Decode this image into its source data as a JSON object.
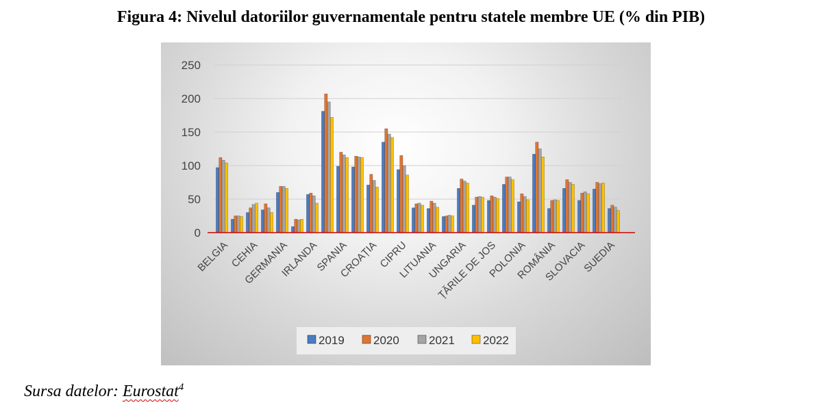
{
  "figure": {
    "title": "Figura 4: Nivelul datoriilor guvernamentale pentru statele membre UE (% din PIB)",
    "source_prefix": "Sursa datelor: ",
    "source_link": "Eurostat",
    "source_footnote": "4"
  },
  "chart_data": {
    "type": "bar",
    "categories": [
      "BELGIA",
      "CEHIA",
      "GERMANIA",
      "IRLANDA",
      "SPANIA",
      "CROAȚIA",
      "CIPRU",
      "LITUANIA",
      "UNGARIA",
      "ȚĂRILE DE JOS",
      "POLONIA",
      "ROMÂNIA",
      "SLOVACIA",
      "SUEDIA"
    ],
    "groups": [
      [
        97,
        112,
        108,
        104
      ],
      [
        20,
        25,
        25,
        24
      ],
      [
        30,
        37,
        42,
        44
      ],
      [
        34,
        43,
        37,
        30
      ],
      [
        60,
        69,
        69,
        66
      ],
      [
        9,
        20,
        19,
        20
      ],
      [
        57,
        59,
        55,
        44
      ],
      [
        181,
        207,
        195,
        172
      ],
      [
        99,
        120,
        116,
        112
      ],
      [
        98,
        114,
        113,
        112
      ],
      [
        71,
        87,
        78,
        68
      ],
      [
        135,
        155,
        147,
        142
      ],
      [
        94,
        115,
        100,
        86
      ],
      [
        37,
        43,
        44,
        41
      ],
      [
        36,
        47,
        44,
        38
      ],
      [
        24,
        25,
        26,
        25
      ],
      [
        66,
        80,
        77,
        74
      ],
      [
        41,
        53,
        54,
        53
      ],
      [
        48,
        55,
        53,
        51
      ],
      [
        72,
        83,
        83,
        79
      ],
      [
        46,
        58,
        54,
        49
      ],
      [
        117,
        135,
        125,
        113
      ],
      [
        36,
        48,
        49,
        48
      ],
      [
        66,
        79,
        75,
        72
      ],
      [
        48,
        59,
        61,
        58
      ],
      [
        65,
        75,
        73,
        74
      ],
      [
        36,
        41,
        38,
        33
      ]
    ],
    "series": [
      {
        "name": "2019",
        "color": "#4a7cc1"
      },
      {
        "name": "2020",
        "color": "#e07533"
      },
      {
        "name": "2021",
        "color": "#a5a5a5"
      },
      {
        "name": "2022",
        "color": "#ffc000"
      }
    ],
    "yticks": [
      0,
      50,
      100,
      150,
      200,
      250
    ],
    "ylim": [
      0,
      250
    ],
    "grid": true,
    "legend": "bottom-center",
    "baseline_color": "#d00000"
  }
}
